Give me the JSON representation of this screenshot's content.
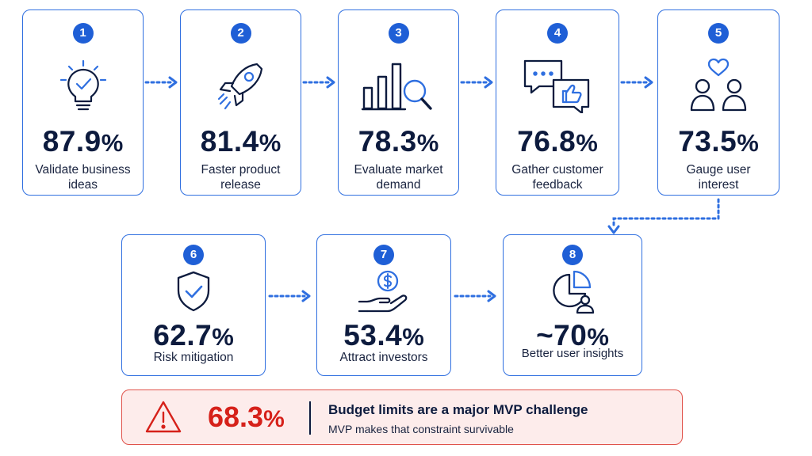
{
  "steps": [
    {
      "number": "1",
      "value": "87.9",
      "unit": "%",
      "label": "Validate business ideas",
      "icon": "lightbulb-check-icon"
    },
    {
      "number": "2",
      "value": "81.4",
      "unit": "%",
      "label": "Faster product release",
      "icon": "rocket-icon"
    },
    {
      "number": "3",
      "value": "78.3",
      "unit": "%",
      "label": "Evaluate market demand",
      "icon": "bar-chart-magnifier-icon"
    },
    {
      "number": "4",
      "value": "76.8",
      "unit": "%",
      "label": "Gather customer feedback",
      "icon": "chat-thumbs-up-icon"
    },
    {
      "number": "5",
      "value": "73.5",
      "unit": "%",
      "label": "Gauge user interest",
      "icon": "users-heart-icon"
    },
    {
      "number": "6",
      "value": "62.7",
      "unit": "%",
      "label": "Risk mitigation",
      "icon": "shield-check-icon"
    },
    {
      "number": "7",
      "value": "53.4",
      "unit": "%",
      "label": "Attract investors",
      "icon": "hand-dollar-icon"
    },
    {
      "number": "8",
      "value": "~70",
      "unit": "%",
      "label": "Better user insights",
      "icon": "pie-chart-user-icon"
    }
  ],
  "challenge": {
    "value": "68.3",
    "unit": "%",
    "title": "Budget limits are a major MVP challenge",
    "subtitle": "MVP makes that constraint survivable",
    "icon": "warning-triangle-icon"
  },
  "colors": {
    "accent": "#1f5fd6",
    "border": "#2f6fe0",
    "text": "#0d1b3e",
    "alert_red": "#d6211a",
    "alert_bg": "#fdeceb"
  }
}
